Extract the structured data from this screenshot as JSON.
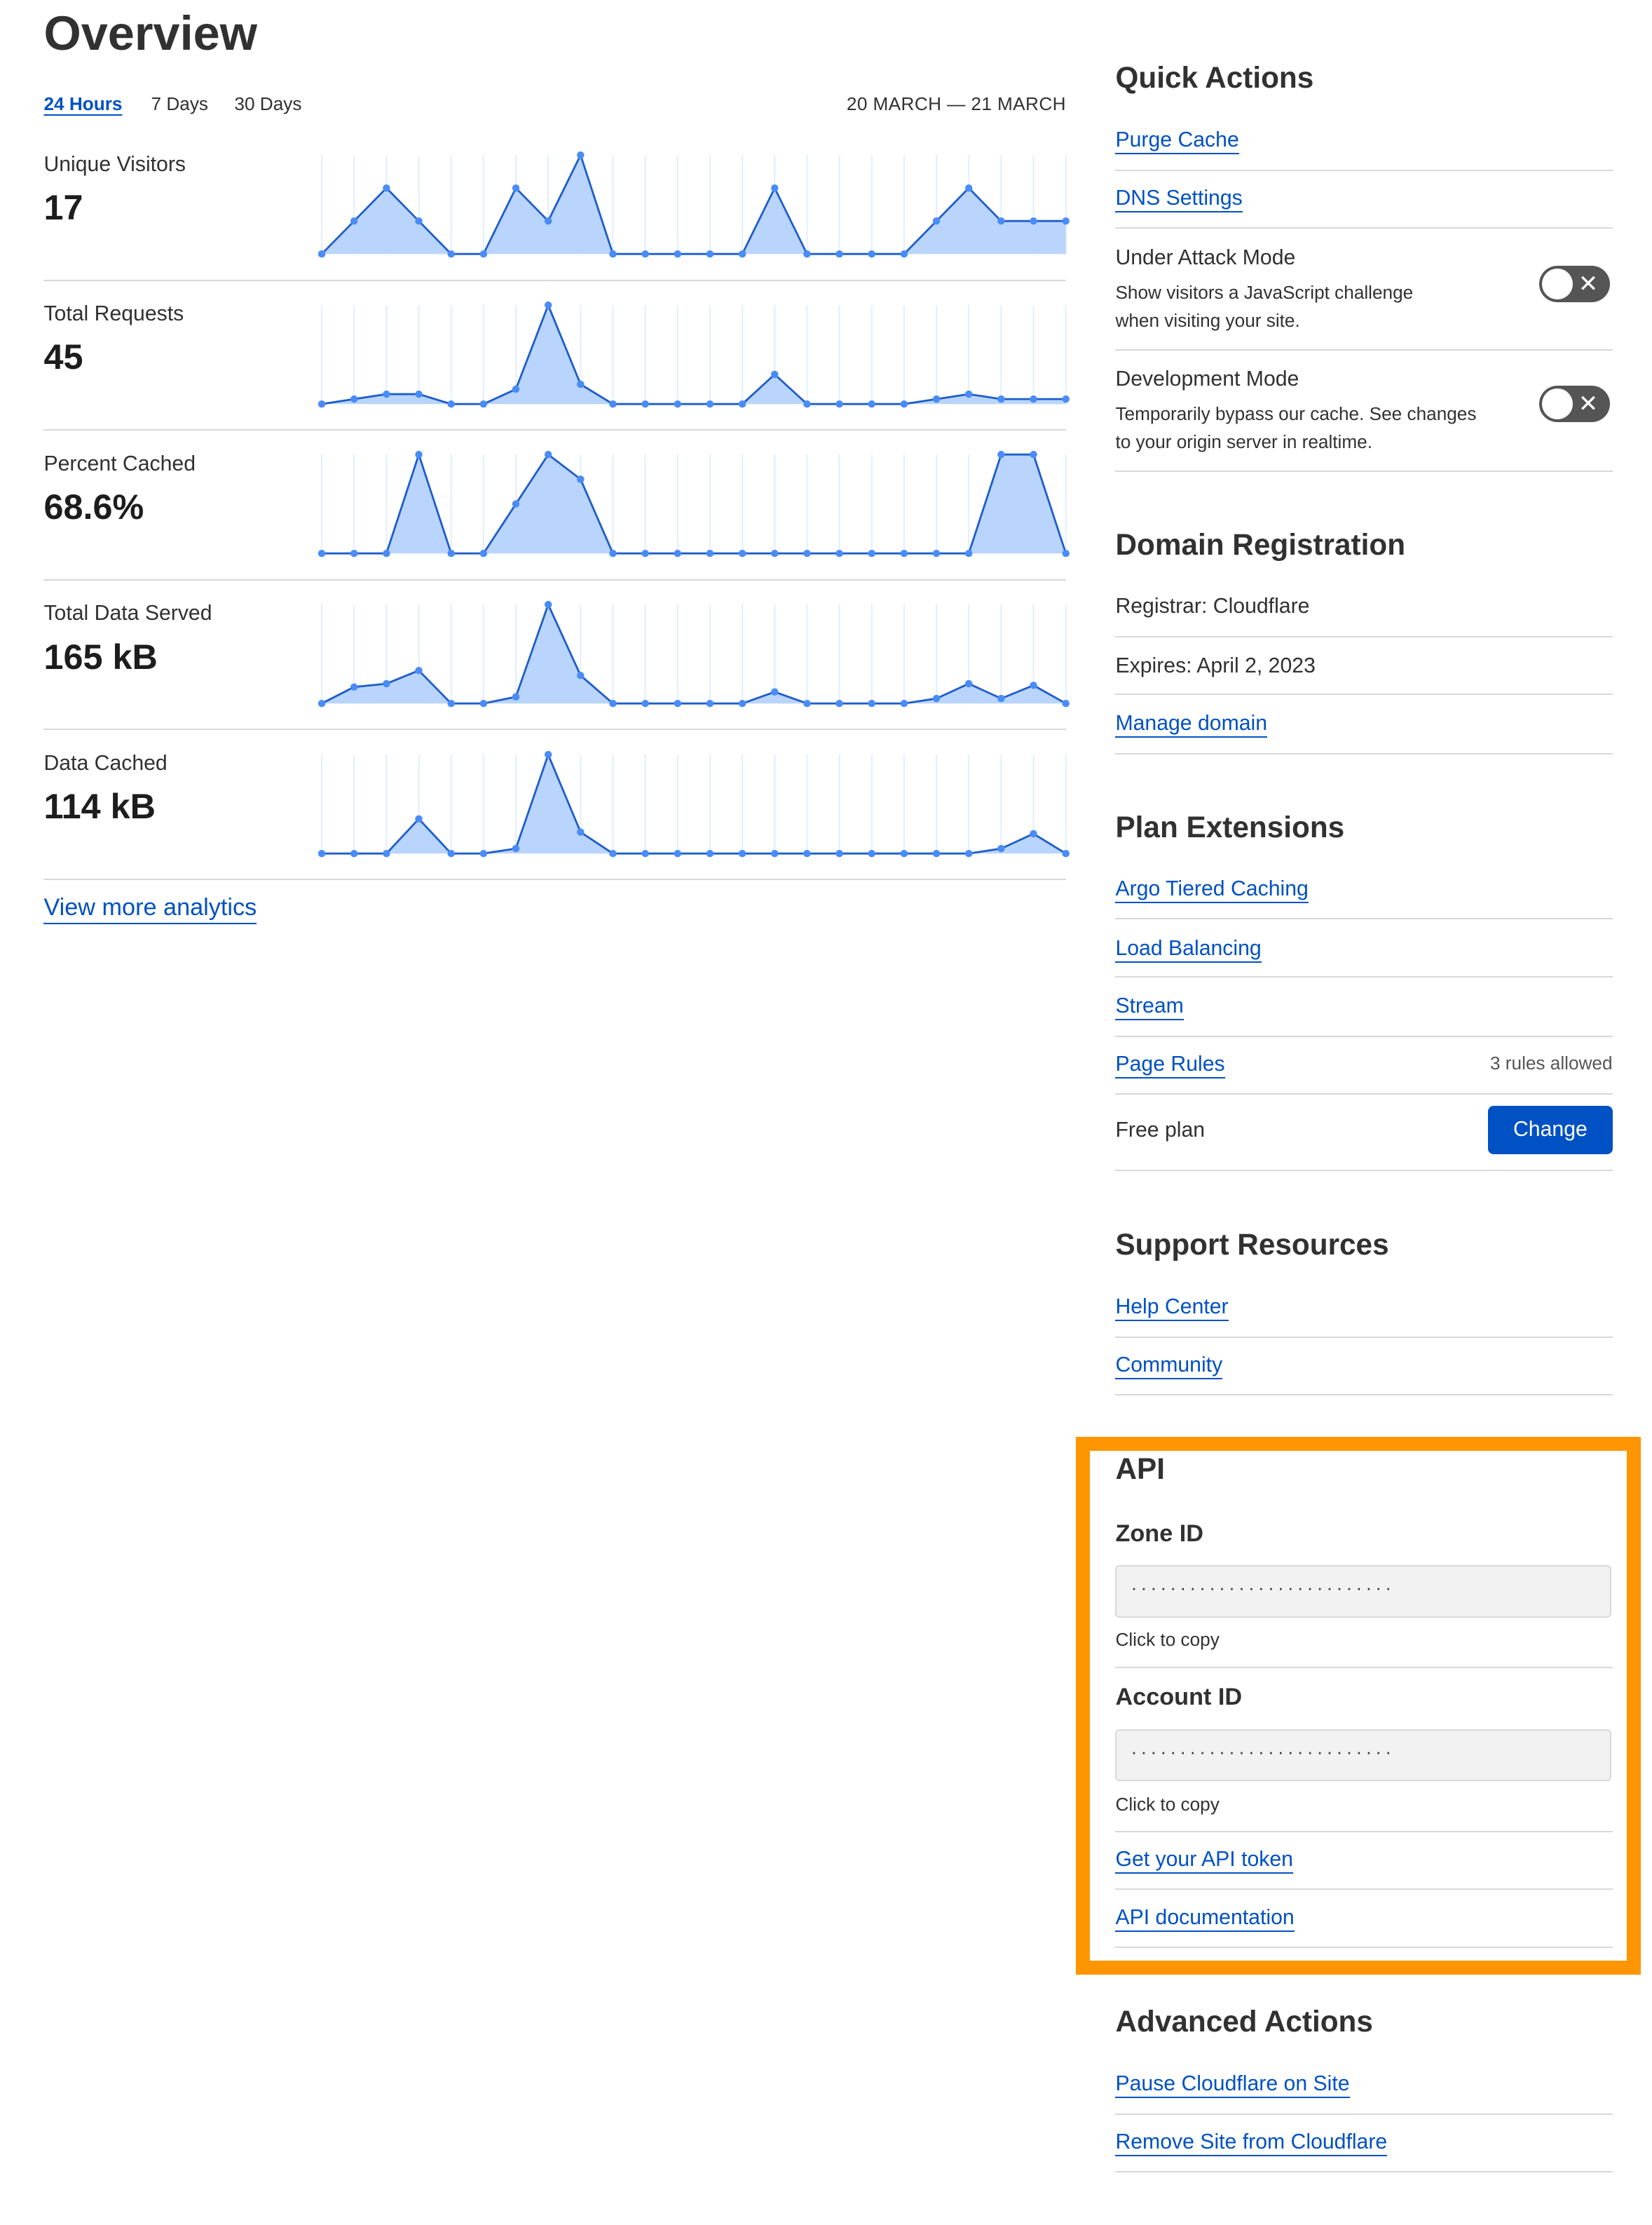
{
  "overview": {
    "title": "Overview",
    "tabs": [
      {
        "label": "24 Hours",
        "active": true
      },
      {
        "label": "7 Days",
        "active": false
      },
      {
        "label": "30 Days",
        "active": false
      }
    ],
    "date_range": "20 MARCH — 21 MARCH",
    "view_more": "View more analytics"
  },
  "colors": {
    "line": "#1F5DCB",
    "fill": "#B9D5FD",
    "point": "#4A8CF7",
    "grid": "#E3EEFD",
    "link": "#0051C3",
    "highlight": "#FF9500",
    "toggle_off": "#555555"
  },
  "chart_data": [
    {
      "type": "area",
      "label": "Unique Visitors",
      "value": "17",
      "values": [
        0,
        1,
        2,
        1,
        0,
        0,
        2,
        1,
        3,
        0,
        0,
        0,
        0,
        0,
        2,
        0,
        0,
        0,
        0,
        1,
        2,
        1,
        1,
        1
      ]
    },
    {
      "type": "area",
      "label": "Total Requests",
      "value": "45",
      "values": [
        0,
        1,
        2,
        2,
        0,
        0,
        3,
        20,
        4,
        0,
        0,
        0,
        0,
        0,
        6,
        0,
        0,
        0,
        0,
        1,
        2,
        1,
        1,
        1
      ]
    },
    {
      "type": "area",
      "label": "Percent Cached",
      "value": "68.6%",
      "values": [
        0,
        0,
        0,
        100,
        0,
        0,
        50,
        100,
        75,
        0,
        0,
        0,
        0,
        0,
        0,
        0,
        0,
        0,
        0,
        0,
        0,
        100,
        100,
        0
      ]
    },
    {
      "type": "area",
      "label": "Total Data Served",
      "value": "165 kB",
      "values": [
        0,
        10,
        12,
        20,
        0,
        0,
        4,
        60,
        17,
        0,
        0,
        0,
        0,
        0,
        7,
        0,
        0,
        0,
        0,
        3,
        12,
        3,
        11,
        0
      ]
    },
    {
      "type": "area",
      "label": "Data Cached",
      "value": "114 kB",
      "values": [
        0,
        0,
        0,
        21,
        0,
        0,
        3,
        60,
        13,
        0,
        0,
        0,
        0,
        0,
        0,
        0,
        0,
        0,
        0,
        0,
        0,
        3,
        12,
        0
      ]
    }
  ],
  "quick_actions": {
    "title": "Quick Actions",
    "purge": "Purge Cache",
    "dns": "DNS Settings",
    "under_attack": {
      "title": "Under Attack Mode",
      "desc": "Show visitors a JavaScript challenge when visiting your site.",
      "enabled": false
    },
    "dev_mode": {
      "title": "Development Mode",
      "desc": "Temporarily bypass our cache. See changes to your origin server in realtime.",
      "enabled": false
    },
    "toggle_x": "✕"
  },
  "domain": {
    "title": "Domain Registration",
    "registrar": "Registrar: Cloudflare",
    "expires": "Expires: April 2, 2023",
    "manage": "Manage domain"
  },
  "plan": {
    "title": "Plan Extensions",
    "argo": "Argo Tiered Caching",
    "lb": "Load Balancing",
    "stream": "Stream",
    "page_rules": "Page Rules",
    "rules_note": "3 rules allowed",
    "plan_name": "Free plan",
    "change": "Change"
  },
  "support": {
    "title": "Support Resources",
    "help": "Help Center",
    "community": "Community"
  },
  "api": {
    "title": "API",
    "zone_label": "Zone ID",
    "zone_value": "···························",
    "copy": "Click to copy",
    "account_label": "Account ID",
    "account_value": "···························",
    "token": "Get your API token",
    "docs": "API documentation"
  },
  "advanced": {
    "title": "Advanced Actions",
    "pause": "Pause Cloudflare on Site",
    "remove": "Remove Site from Cloudflare"
  }
}
